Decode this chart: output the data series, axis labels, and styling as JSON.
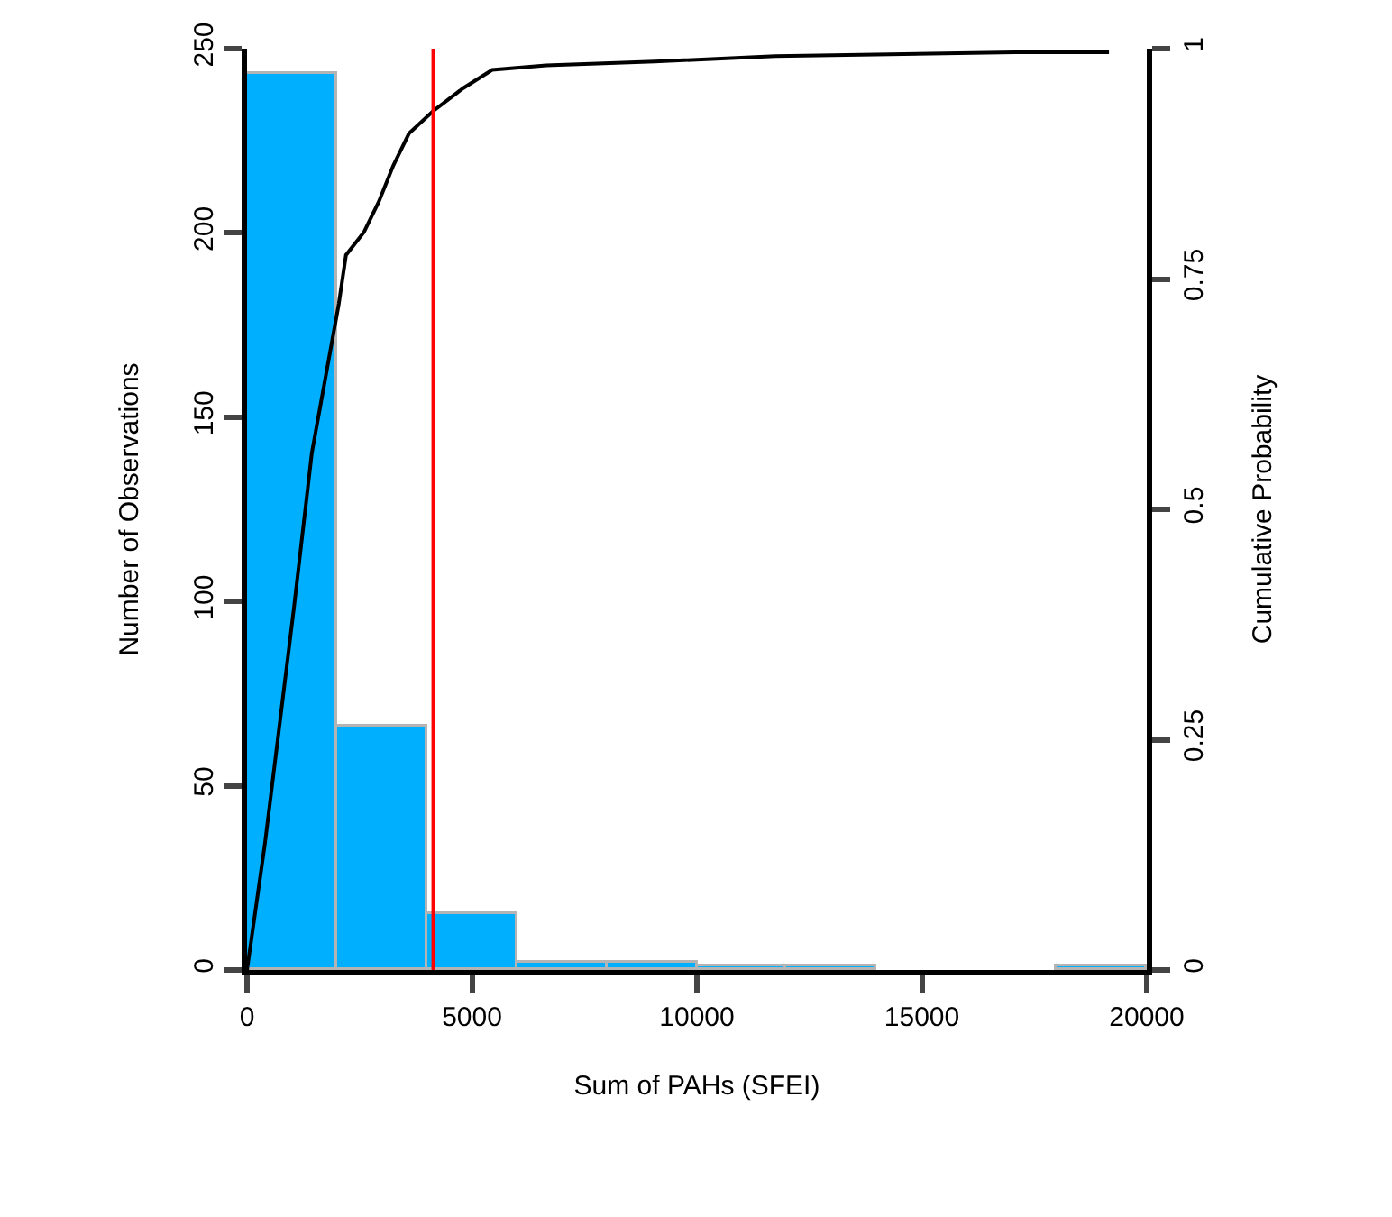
{
  "chart_data": {
    "type": "histogram",
    "xlabel": "Sum of PAHs (SFEI)",
    "ylabel": "Number of Observations",
    "y2label": "Cumulative Probability",
    "bins": [
      0,
      2000,
      4000,
      6000,
      8000,
      10000,
      12000,
      14000,
      16000,
      18000,
      20000
    ],
    "values": [
      243,
      66,
      15,
      2,
      2,
      1,
      1,
      0,
      0,
      1
    ],
    "color": "#00b0ff",
    "series": [
      {
        "type": "line",
        "axis": "y2",
        "color": "#000000",
        "x": [
          0,
          400,
          1040,
          1440,
          2040,
          2200,
          2600,
          2930,
          3250,
          3600,
          4130,
          4800,
          5450,
          6650,
          9060,
          11740,
          17070,
          19160
        ],
        "values": [
          0,
          0.138,
          0.392,
          0.561,
          0.723,
          0.776,
          0.801,
          0.834,
          0.873,
          0.908,
          0.932,
          0.957,
          0.977,
          0.982,
          0.986,
          0.992,
          0.996,
          0.996
        ]
      }
    ],
    "xlim": [
      0,
      20000
    ],
    "xticks": [
      0,
      5000,
      10000,
      15000,
      20000
    ],
    "ylim": [
      0,
      250
    ],
    "yticks": [
      0,
      50,
      100,
      150,
      200,
      250
    ],
    "y2lim": [
      0,
      1
    ],
    "y2ticks": [
      0,
      0.25,
      0.5,
      0.75,
      1
    ],
    "ref_lines": [
      {
        "axis": "x",
        "value": 4140,
        "color": "#ff0000"
      }
    ]
  }
}
